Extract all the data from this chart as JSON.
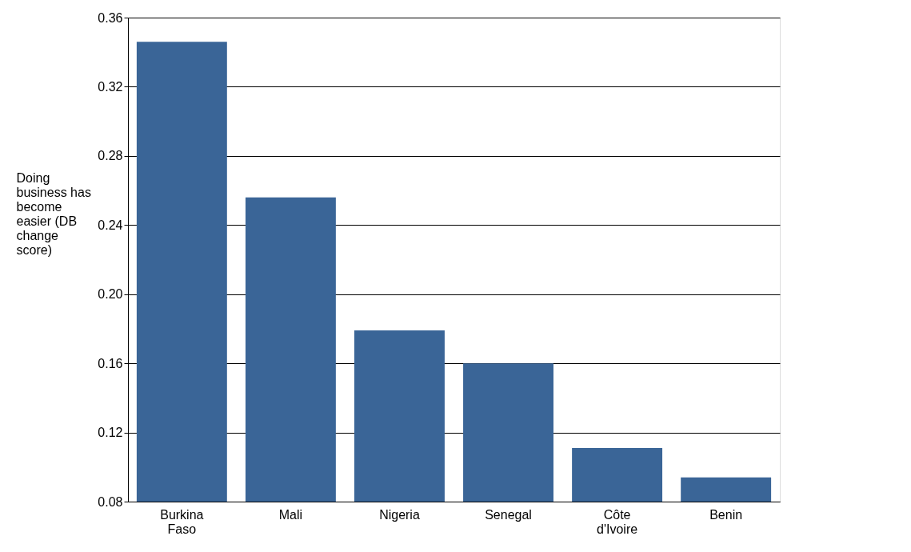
{
  "chart_data": {
    "type": "bar",
    "ylabel": "Doing business has become easier (DB change score)",
    "categories": [
      "Burkina Faso",
      "Mali",
      "Nigeria",
      "Senegal",
      "Côte d'Ivoire",
      "Benin"
    ],
    "values": [
      0.346,
      0.256,
      0.179,
      0.16,
      0.111,
      0.094
    ],
    "color": "#3a6597",
    "ylim": [
      0.08,
      0.36
    ],
    "yticks": [
      0.08,
      0.12,
      0.16,
      {
        "value": 0.2,
        "label": "0.20"
      },
      0.24,
      0.28,
      0.32,
      0.36
    ],
    "grid": "y"
  }
}
